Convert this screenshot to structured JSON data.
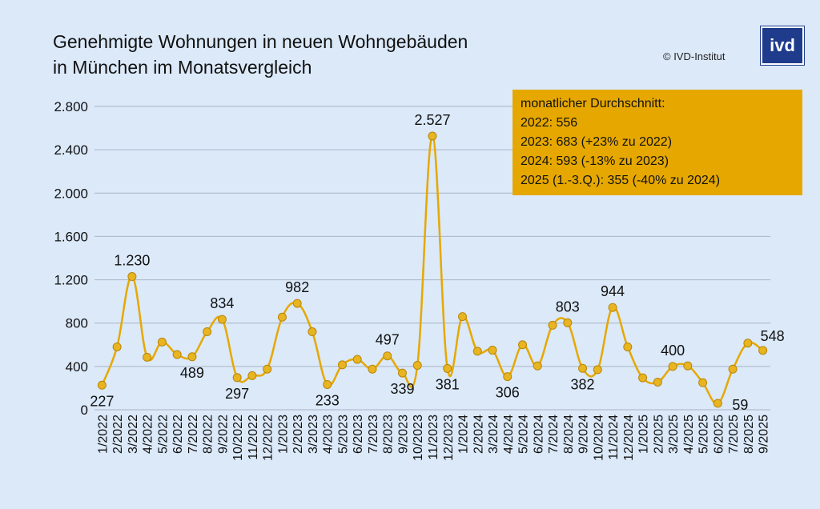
{
  "title": {
    "line1": "Genehmigte Wohnungen in neuen Wohngebäuden",
    "line2": "in München im Monatsvergleich"
  },
  "copyright": "© IVD-Institut",
  "logo_text": "ivd",
  "average_box": {
    "heading": "monatlicher Durchschnitt:",
    "lines": [
      "2022: 556",
      "2023: 683 (+23% zu 2022)",
      "2024: 593 (-13% zu 2023)",
      "2025 (1.-3.Q.): 355 (-40% zu 2024)"
    ]
  },
  "colors": {
    "background": "#dbe9f9",
    "line": "#e6a800",
    "marker": "#e8b420",
    "marker_edge": "#b8860b",
    "box": "#e6a800",
    "grid": "#aab4c4"
  },
  "chart_data": {
    "type": "line",
    "title": "Genehmigte Wohnungen in neuen Wohngebäuden in München im Monatsvergleich",
    "xlabel": "",
    "ylabel": "",
    "ylim": [
      0,
      2800
    ],
    "yticks": [
      0,
      400,
      800,
      1200,
      1600,
      2000,
      2400,
      2800
    ],
    "ytick_labels": [
      "0",
      "400",
      "800",
      "1.200",
      "1.600",
      "2.000",
      "2.400",
      "2.800"
    ],
    "grid": true,
    "categories": [
      "1/2022",
      "2/2022",
      "3/2022",
      "4/2022",
      "5/2022",
      "6/2022",
      "7/2022",
      "8/2022",
      "9/2022",
      "10/2022",
      "11/2022",
      "12/2022",
      "1/2023",
      "2/2023",
      "3/2023",
      "4/2023",
      "5/2023",
      "6/2023",
      "7/2023",
      "8/2023",
      "9/2023",
      "10/2023",
      "11/2023",
      "12/2023",
      "1/2024",
      "2/2024",
      "3/2024",
      "4/2024",
      "5/2024",
      "6/2024",
      "7/2024",
      "8/2024",
      "9/2024",
      "10/2024",
      "11/2024",
      "12/2024",
      "1/2025",
      "2/2025",
      "3/2025",
      "4/2025",
      "5/2025",
      "6/2025",
      "7/2025",
      "8/2025",
      "9/2025"
    ],
    "values": [
      227,
      580,
      1230,
      485,
      625,
      510,
      489,
      720,
      834,
      297,
      315,
      375,
      855,
      982,
      720,
      233,
      415,
      465,
      375,
      497,
      339,
      410,
      2527,
      381,
      860,
      540,
      550,
      306,
      600,
      405,
      780,
      803,
      382,
      370,
      944,
      580,
      295,
      255,
      400,
      405,
      250,
      59,
      375,
      615,
      548
    ],
    "data_labels": [
      {
        "index": 0,
        "text": "227",
        "position": "below"
      },
      {
        "index": 2,
        "text": "1.230",
        "position": "above"
      },
      {
        "index": 6,
        "text": "489",
        "position": "below"
      },
      {
        "index": 8,
        "text": "834",
        "position": "above"
      },
      {
        "index": 9,
        "text": "297",
        "position": "below"
      },
      {
        "index": 13,
        "text": "982",
        "position": "above"
      },
      {
        "index": 15,
        "text": "233",
        "position": "below"
      },
      {
        "index": 19,
        "text": "497",
        "position": "above"
      },
      {
        "index": 20,
        "text": "339",
        "position": "below"
      },
      {
        "index": 22,
        "text": "2.527",
        "position": "above"
      },
      {
        "index": 23,
        "text": "381",
        "position": "below"
      },
      {
        "index": 27,
        "text": "306",
        "position": "below"
      },
      {
        "index": 31,
        "text": "803",
        "position": "above"
      },
      {
        "index": 32,
        "text": "382",
        "position": "below"
      },
      {
        "index": 34,
        "text": "944",
        "position": "above"
      },
      {
        "index": 38,
        "text": "400",
        "position": "above"
      },
      {
        "index": 41,
        "text": "59",
        "position": "below-right"
      },
      {
        "index": 44,
        "text": "548",
        "position": "above-right"
      }
    ]
  }
}
